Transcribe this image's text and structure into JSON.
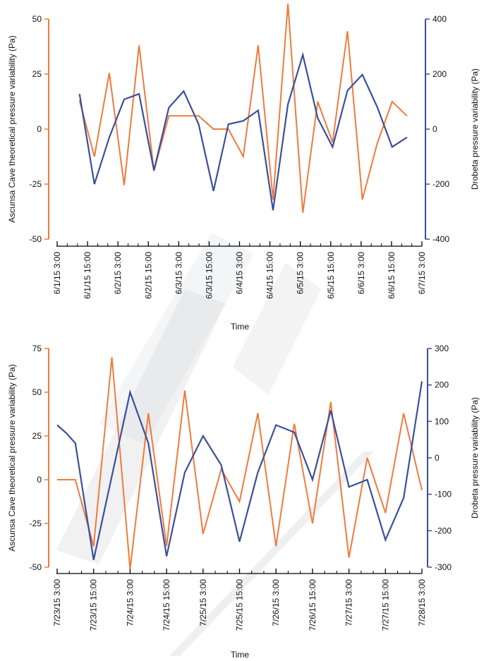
{
  "chart_data": [
    {
      "type": "line",
      "xlabel": "Time",
      "ylabel_left": "Ascunsa Cave theoretical pressure variability (Pa)",
      "ylabel_right": "Drobeta pressure variability (Pa)",
      "ylim_left": [
        -50,
        50
      ],
      "ylim_right": [
        -400,
        400
      ],
      "yticks_left": [
        "50",
        "25",
        "0",
        "-25",
        "-50"
      ],
      "yticks_right": [
        "400",
        "200",
        "0",
        "-200",
        "-400"
      ],
      "xlim": [
        "2015-06-01 00:00",
        "2015-06-07 03:00"
      ],
      "xticks": [
        "6/1/15 3:00",
        "6/1/15 15:00",
        "6/2/15 3:00",
        "6/2/15 15:00",
        "6/3/15 3:00",
        "6/3/15 15:00",
        "6/4/15 3:00",
        "6/4/15 15:00",
        "6/5/15 3:00",
        "6/5/15 15:00",
        "6/6/15 3:00",
        "6/6/15 15:00",
        "6/7/15 3:00"
      ],
      "grid": false,
      "colors": {
        "ascunsa": "#f07a3c",
        "drobeta": "#3a4f9c"
      },
      "series": [
        {
          "axis": "left",
          "x": [
            "2015-06-01 09:00",
            "2015-06-01 15:00",
            "2015-06-01 21:00",
            "2015-06-02 03:00",
            "2015-06-02 09:00",
            "2015-06-02 15:00",
            "2015-06-02 21:00",
            "2015-06-03 03:00",
            "2015-06-03 09:00",
            "2015-06-03 15:00",
            "2015-06-03 21:00",
            "2015-06-04 03:00",
            "2015-06-04 09:00",
            "2015-06-04 15:00",
            "2015-06-04 21:00",
            "2015-06-05 03:00",
            "2015-06-05 09:00",
            "2015-06-05 15:00",
            "2015-06-05 21:00",
            "2015-06-06 03:00",
            "2015-06-06 09:00",
            "2015-06-06 15:00",
            "2015-06-06 21:00"
          ],
          "values": [
            13,
            -12.5,
            25.5,
            -25.5,
            38,
            -19,
            6,
            6,
            6,
            0,
            0,
            -12.5,
            38,
            -32,
            57,
            -38,
            12.5,
            -6,
            44.5,
            -32,
            -6.5,
            12.5,
            6
          ]
        },
        {
          "axis": "right",
          "x": [
            "2015-06-01 09:00",
            "2015-06-01 15:00",
            "2015-06-01 21:00",
            "2015-06-02 03:00",
            "2015-06-02 09:00",
            "2015-06-02 15:00",
            "2015-06-02 21:00",
            "2015-06-03 03:00",
            "2015-06-03 09:00",
            "2015-06-03 15:00",
            "2015-06-03 21:00",
            "2015-06-04 03:00",
            "2015-06-04 09:00",
            "2015-06-04 15:00",
            "2015-06-04 21:00",
            "2015-06-05 03:00",
            "2015-06-05 09:00",
            "2015-06-05 15:00",
            "2015-06-05 21:00",
            "2015-06-06 03:00",
            "2015-06-06 09:00",
            "2015-06-06 15:00",
            "2015-06-06 21:00"
          ],
          "values": [
            128,
            -200,
            -30,
            108,
            128,
            -150,
            78,
            138,
            18,
            -225,
            18,
            30,
            68,
            -295,
            90,
            270,
            40,
            -65,
            140,
            198,
            80,
            -65,
            -30
          ]
        }
      ]
    },
    {
      "type": "line",
      "xlabel": "Time",
      "ylabel_left": "Ascunsa Cave theoretical pressure variability (Pa)",
      "ylabel_right": "Drobeta pressure variability (Pa)",
      "ylim_left": [
        -50,
        75
      ],
      "ylim_right": [
        -300,
        300
      ],
      "yticks_left": [
        "75",
        "50",
        "25",
        "0",
        "-25",
        "-50"
      ],
      "yticks_right": [
        "300",
        "200",
        "100",
        "0",
        "-100",
        "-200",
        "-300"
      ],
      "xlim": [
        "2015-07-23 03:00",
        "2015-07-28 03:00"
      ],
      "xticks": [
        "7/23/15 3:00",
        "7/23/15 15:00",
        "7/24/15 3:00",
        "7/24/15 15:00",
        "7/25/15 3:00",
        "7/25/15 15:00",
        "7/26/15 3:00",
        "7/26/15 15:00",
        "7/27/15 3:00",
        "7/27/15 15:00",
        "7/28/15 3:00"
      ],
      "grid": false,
      "colors": {
        "ascunsa": "#f07a3c",
        "drobeta": "#3a4f9c"
      },
      "series": [
        {
          "axis": "left",
          "x": [
            "2015-07-23 03:00",
            "2015-07-23 09:00",
            "2015-07-23 15:00",
            "2015-07-23 21:00",
            "2015-07-24 03:00",
            "2015-07-24 09:00",
            "2015-07-24 15:00",
            "2015-07-24 21:00",
            "2015-07-25 03:00",
            "2015-07-25 09:00",
            "2015-07-25 15:00",
            "2015-07-25 21:00",
            "2015-07-26 03:00",
            "2015-07-26 09:00",
            "2015-07-26 15:00",
            "2015-07-26 21:00",
            "2015-07-27 03:00",
            "2015-07-27 09:00",
            "2015-07-27 15:00",
            "2015-07-27 21:00",
            "2015-07-28 03:00"
          ],
          "values": [
            0,
            0,
            -38,
            70,
            -51,
            38,
            -38,
            51,
            -31,
            6,
            -12.5,
            38,
            -38,
            32,
            -25,
            44.5,
            -44.5,
            12.5,
            -19,
            38,
            -6
          ]
        },
        {
          "axis": "right",
          "x": [
            "2015-07-23 03:00",
            "2015-07-23 06:00",
            "2015-07-23 09:00",
            "2015-07-23 15:00",
            "2015-07-24 03:00",
            "2015-07-24 09:00",
            "2015-07-24 15:00",
            "2015-07-24 21:00",
            "2015-07-25 03:00",
            "2015-07-25 09:00",
            "2015-07-25 15:00",
            "2015-07-25 21:00",
            "2015-07-26 03:00",
            "2015-07-26 09:00",
            "2015-07-26 15:00",
            "2015-07-26 21:00",
            "2015-07-27 03:00",
            "2015-07-27 09:00",
            "2015-07-27 15:00",
            "2015-07-27 21:00",
            "2015-07-28 03:00"
          ],
          "values": [
            90,
            68,
            40,
            -280,
            180,
            40,
            -270,
            -40,
            60,
            -20,
            -230,
            -40,
            90,
            70,
            -60,
            130,
            -80,
            -60,
            -225,
            -110,
            210
          ]
        }
      ]
    }
  ]
}
